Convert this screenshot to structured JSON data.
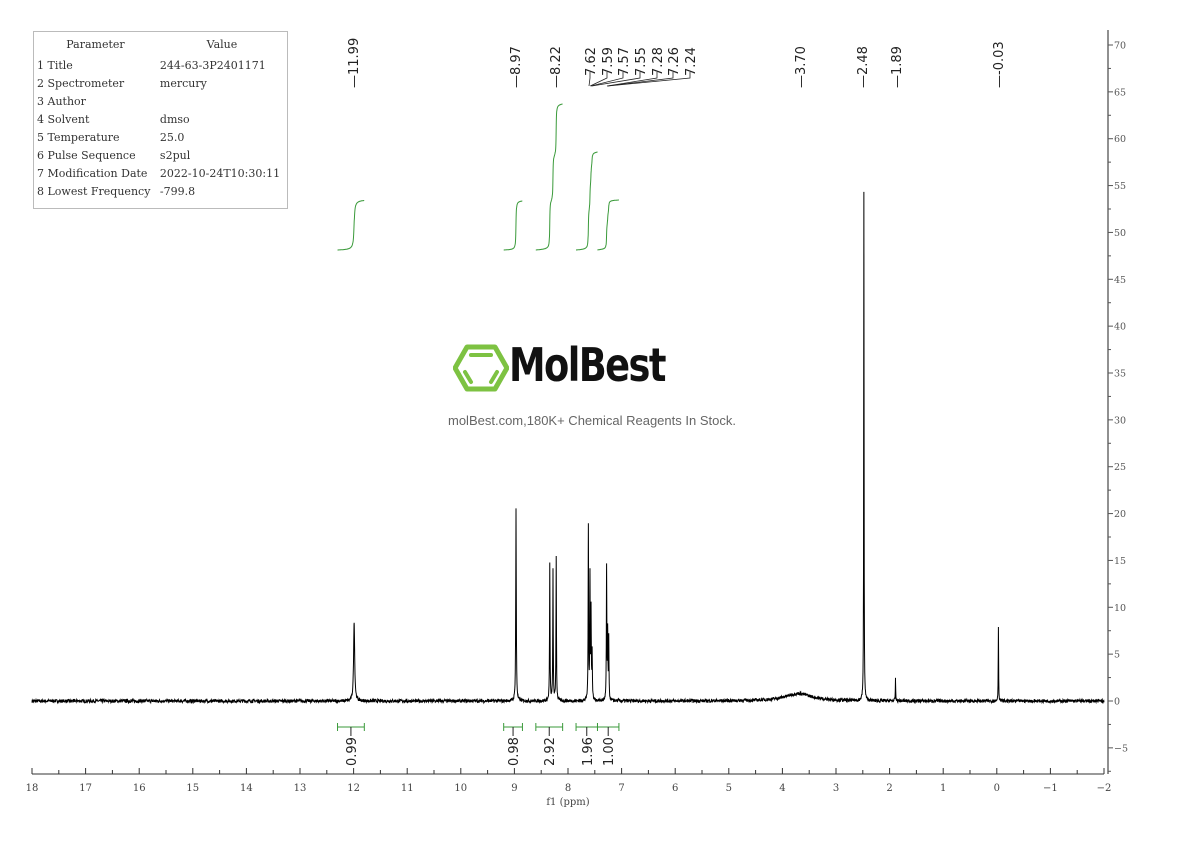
{
  "parameters": {
    "header": [
      "Parameter",
      "Value"
    ],
    "rows": [
      [
        "1 Title",
        "244-63-3P2401171"
      ],
      [
        "2 Spectrometer",
        "mercury"
      ],
      [
        "3 Author",
        ""
      ],
      [
        "4 Solvent",
        "dmso"
      ],
      [
        "5 Temperature",
        "25.0"
      ],
      [
        "6 Pulse Sequence",
        "s2pul"
      ],
      [
        "7 Modification Date",
        "2022-10-24T10:30:11"
      ],
      [
        "8 Lowest Frequency",
        "-799.8"
      ]
    ]
  },
  "watermark": {
    "brand": "MolBest",
    "tagline": "molBest.com,180K+ Chemical Reagents In Stock.",
    "accent_color": "#7dc242"
  },
  "chart_data": {
    "type": "line",
    "xlabel": "f1 (ppm)",
    "xlim": [
      18,
      -2
    ],
    "ylim": [
      -8,
      72
    ],
    "x_ticks": [
      18,
      17,
      16,
      15,
      14,
      13,
      12,
      11,
      10,
      9,
      8,
      7,
      6,
      5,
      4,
      3,
      2,
      1,
      0,
      -1,
      -2
    ],
    "y_ticks": [
      -5,
      0,
      5,
      10,
      15,
      20,
      25,
      30,
      35,
      40,
      45,
      50,
      55,
      60,
      65,
      70
    ],
    "y_axis_position": "right",
    "line_color": "#000000",
    "integral_color": "#3a9a3a",
    "peaks": [
      {
        "ppm": 11.99,
        "height": 8.5,
        "width": 0.012
      },
      {
        "ppm": 8.97,
        "height": 20.5,
        "width": 0.006
      },
      {
        "ppm": 8.34,
        "height": 14.5,
        "width": 0.005
      },
      {
        "ppm": 8.28,
        "height": 13.8,
        "width": 0.005
      },
      {
        "ppm": 8.22,
        "height": 15.3,
        "width": 0.005
      },
      {
        "ppm": 7.62,
        "height": 18.5,
        "width": 0.005
      },
      {
        "ppm": 7.59,
        "height": 13.0,
        "width": 0.005
      },
      {
        "ppm": 7.57,
        "height": 9.5,
        "width": 0.005
      },
      {
        "ppm": 7.55,
        "height": 5.0,
        "width": 0.005
      },
      {
        "ppm": 7.28,
        "height": 14.0,
        "width": 0.005
      },
      {
        "ppm": 7.26,
        "height": 7.0,
        "width": 0.005
      },
      {
        "ppm": 7.24,
        "height": 6.5,
        "width": 0.005
      },
      {
        "ppm": 3.7,
        "height": 0.8,
        "width": 0.3
      },
      {
        "ppm": 2.48,
        "height": 54.2,
        "width": 0.004
      },
      {
        "ppm": 1.89,
        "height": 2.3,
        "width": 0.004
      },
      {
        "ppm": -0.03,
        "height": 8.0,
        "width": 0.004
      }
    ],
    "peak_labels": [
      "11.99",
      "8.97",
      "8.22",
      "7.62",
      "7.59",
      "7.57",
      "7.55",
      "7.28",
      "7.26",
      "7.24",
      "3.70",
      "2.48",
      "1.89",
      "-0.03"
    ],
    "integrals": [
      {
        "from": 12.3,
        "to": 11.8,
        "value": "0.99"
      },
      {
        "from": 9.2,
        "to": 8.85,
        "value": "0.98"
      },
      {
        "from": 8.6,
        "to": 8.1,
        "value": "2.92"
      },
      {
        "from": 7.85,
        "to": 7.45,
        "value": "1.96"
      },
      {
        "from": 7.45,
        "to": 7.05,
        "value": "1.00"
      }
    ]
  }
}
